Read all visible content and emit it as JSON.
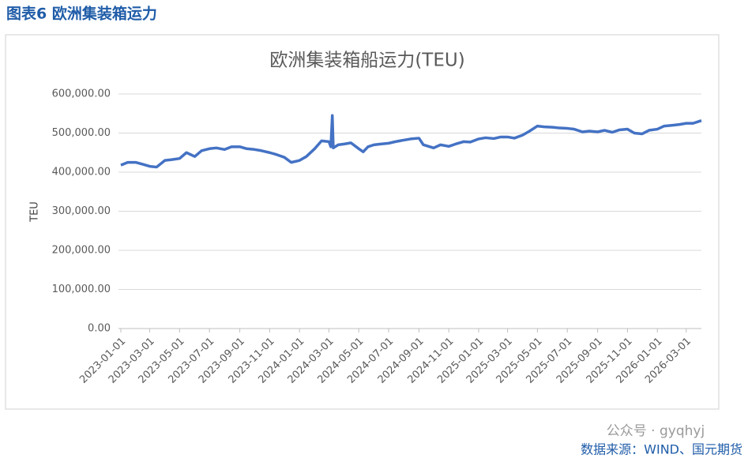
{
  "header": "图表6 欧洲集装箱运力",
  "source": "数据来源：WIND、国元期货",
  "watermark": "公众号 · gyqhyj",
  "chart_data": {
    "type": "line",
    "title": "欧洲集装箱船运力(TEU)",
    "y_label": "TEU",
    "x": [
      "2023-01-01",
      "2023-01-15",
      "2023-02-01",
      "2023-02-15",
      "2023-03-01",
      "2023-03-15",
      "2023-04-01",
      "2023-04-15",
      "2023-05-01",
      "2023-05-15",
      "2023-06-01",
      "2023-06-15",
      "2023-07-01",
      "2023-07-15",
      "2023-08-01",
      "2023-08-15",
      "2023-09-01",
      "2023-09-15",
      "2023-10-01",
      "2023-10-15",
      "2023-11-01",
      "2023-11-15",
      "2023-12-01",
      "2023-12-15",
      "2024-01-01",
      "2024-01-15",
      "2024-02-01",
      "2024-02-15",
      "2024-03-01",
      "2024-03-05",
      "2024-03-08",
      "2024-03-10",
      "2024-03-20",
      "2024-04-01",
      "2024-04-15",
      "2024-05-01",
      "2024-05-10",
      "2024-05-20",
      "2024-06-01",
      "2024-06-15",
      "2024-07-01",
      "2024-07-15",
      "2024-08-01",
      "2024-08-15",
      "2024-09-01",
      "2024-09-10",
      "2024-10-01",
      "2024-10-15",
      "2024-11-01",
      "2024-11-15",
      "2024-12-01",
      "2024-12-15",
      "2025-01-01",
      "2025-01-15",
      "2025-02-01",
      "2025-02-15",
      "2025-03-01",
      "2025-03-15",
      "2025-04-01",
      "2025-04-15",
      "2025-05-01",
      "2025-05-15",
      "2025-06-01",
      "2025-06-15",
      "2025-07-01",
      "2025-07-15",
      "2025-08-01",
      "2025-08-15",
      "2025-09-01",
      "2025-09-15",
      "2025-10-01",
      "2025-10-15",
      "2025-11-01",
      "2025-11-15",
      "2025-12-01",
      "2025-12-15",
      "2026-01-01",
      "2026-01-15",
      "2026-02-01",
      "2026-02-15",
      "2026-03-01",
      "2026-03-15",
      "2026-04-01"
    ],
    "series": [
      {
        "name": "欧洲集装箱船运力",
        "color": "#4472c4",
        "values": [
          418000,
          425000,
          425000,
          420000,
          415000,
          413000,
          430000,
          432000,
          435000,
          450000,
          440000,
          455000,
          460000,
          462000,
          458000,
          465000,
          465000,
          460000,
          458000,
          455000,
          450000,
          445000,
          438000,
          425000,
          430000,
          440000,
          460000,
          480000,
          478000,
          465000,
          545000,
          462000,
          470000,
          472000,
          475000,
          460000,
          452000,
          465000,
          470000,
          472000,
          474000,
          478000,
          482000,
          485000,
          487000,
          470000,
          462000,
          470000,
          466000,
          472000,
          478000,
          477000,
          485000,
          488000,
          486000,
          490000,
          490000,
          487000,
          495000,
          505000,
          518000,
          516000,
          515000,
          513000,
          512000,
          510000,
          503000,
          505000,
          503000,
          507000,
          502000,
          508000,
          510000,
          500000,
          498000,
          507000,
          510000,
          518000,
          520000,
          522000,
          525000,
          525000,
          532000
        ]
      }
    ],
    "xlim": [
      "2023-01-01",
      "2026-04-01"
    ],
    "xticks": [
      "2023-01-01",
      "2023-03-01",
      "2023-05-01",
      "2023-07-01",
      "2023-09-01",
      "2023-11-01",
      "2024-01-01",
      "2024-03-01",
      "2024-05-01",
      "2024-07-01",
      "2024-09-01",
      "2024-11-01",
      "2025-01-01",
      "2025-03-01",
      "2025-05-01",
      "2025-07-01",
      "2025-09-01",
      "2025-11-01",
      "2026-01-01",
      "2026-03-01"
    ],
    "ylim": [
      0,
      600000
    ],
    "yticks": [
      {
        "value": 0,
        "label": "0.00"
      },
      {
        "value": 100000,
        "label": "100,000.00"
      },
      {
        "value": 200000,
        "label": "200,000.00"
      },
      {
        "value": 300000,
        "label": "300,000.00"
      },
      {
        "value": 400000,
        "label": "400,000.00"
      },
      {
        "value": 500000,
        "label": "500,000.00"
      },
      {
        "value": 600000,
        "label": "600,000.00"
      }
    ],
    "grid": true
  }
}
